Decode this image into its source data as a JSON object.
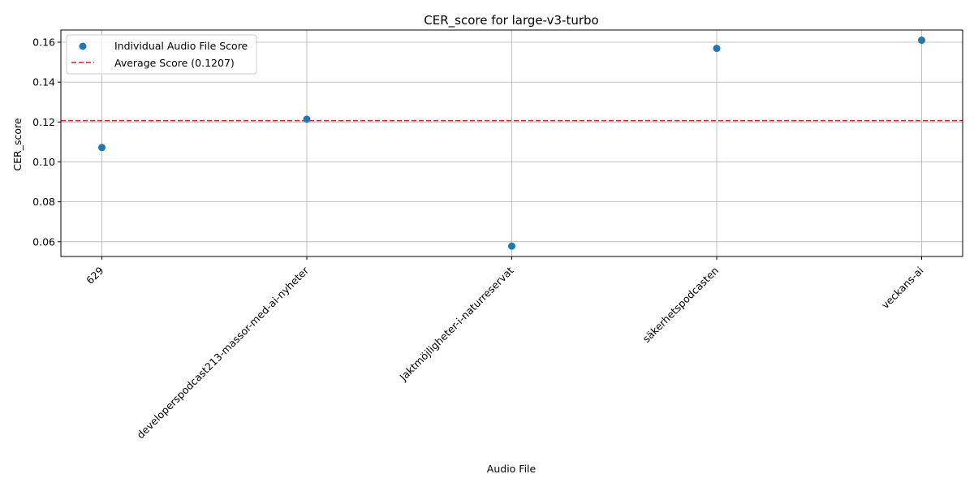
{
  "chart_data": {
    "type": "scatter",
    "title": "CER_score for large-v3-turbo",
    "xlabel": "Audio File",
    "ylabel": "CER_score",
    "categories": [
      "629",
      "developerspodcast213-massor-med-ai-nyheter",
      "Jaktmöjligheter-i-naturreservat",
      "säkerhetspodcasten",
      "veckans-ai"
    ],
    "series": [
      {
        "name": "Individual Audio File Score",
        "values": [
          0.1072,
          0.1214,
          0.0578,
          0.1569,
          0.161
        ],
        "color": "#1f77b4"
      }
    ],
    "average": {
      "name": "Average Score (0.1207)",
      "value": 0.1207,
      "color": "#e31a1c",
      "style": "dashed"
    },
    "ylim": [
      0.0526,
      0.1661
    ],
    "yticks": [
      "0.06",
      "0.08",
      "0.10",
      "0.12",
      "0.14",
      "0.16"
    ],
    "grid": true,
    "legend_position": "top-left"
  }
}
